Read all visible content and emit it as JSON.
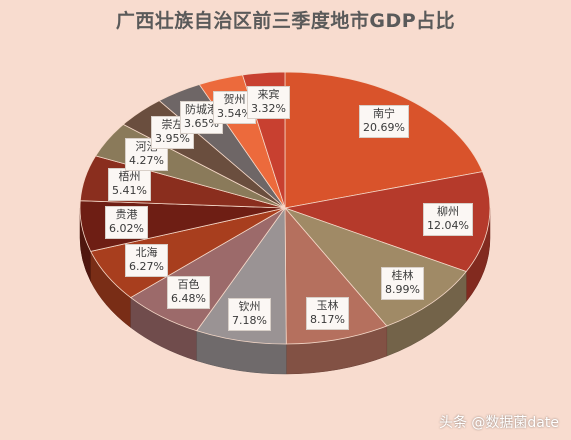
{
  "title": "广西壮族自治区前三季度地市GDP占比",
  "watermark": "头条 @数据菌date",
  "chart_data": {
    "type": "pie",
    "title": "广西壮族自治区前三季度地市GDP占比",
    "style": "3d",
    "unit": "%",
    "slices": [
      {
        "name": "南宁",
        "value": 20.69,
        "label": "20.69%",
        "color": "#d9532b"
      },
      {
        "name": "柳州",
        "value": 12.04,
        "label": "12.04%",
        "color": "#b53a2b"
      },
      {
        "name": "桂林",
        "value": 8.99,
        "label": "8.99%",
        "color": "#a08a66"
      },
      {
        "name": "玉林",
        "value": 8.17,
        "label": "8.17%",
        "color": "#b5705e"
      },
      {
        "name": "钦州",
        "value": 7.18,
        "label": "7.18%",
        "color": "#9a9394"
      },
      {
        "name": "百色",
        "value": 6.48,
        "label": "6.48%",
        "color": "#9c6a6a"
      },
      {
        "name": "北海",
        "value": 6.27,
        "label": "6.27%",
        "color": "#a83e1e"
      },
      {
        "name": "贵港",
        "value": 6.02,
        "label": "6.02%",
        "color": "#6e1e14"
      },
      {
        "name": "梧州",
        "value": 5.41,
        "label": "5.41%",
        "color": "#8a2e1e"
      },
      {
        "name": "河池",
        "value": 4.27,
        "label": "4.27%",
        "color": "#8a7a5a"
      },
      {
        "name": "崇左",
        "value": 3.95,
        "label": "3.95%",
        "color": "#6a4e3e"
      },
      {
        "name": "防城港",
        "value": 3.65,
        "label": "3.65%",
        "color": "#6e6666"
      },
      {
        "name": "贺州",
        "value": 3.54,
        "label": "3.54%",
        "color": "#ec6a3c"
      },
      {
        "name": "来宾",
        "value": 3.32,
        "label": "3.32%",
        "color": "#c84030"
      }
    ]
  }
}
